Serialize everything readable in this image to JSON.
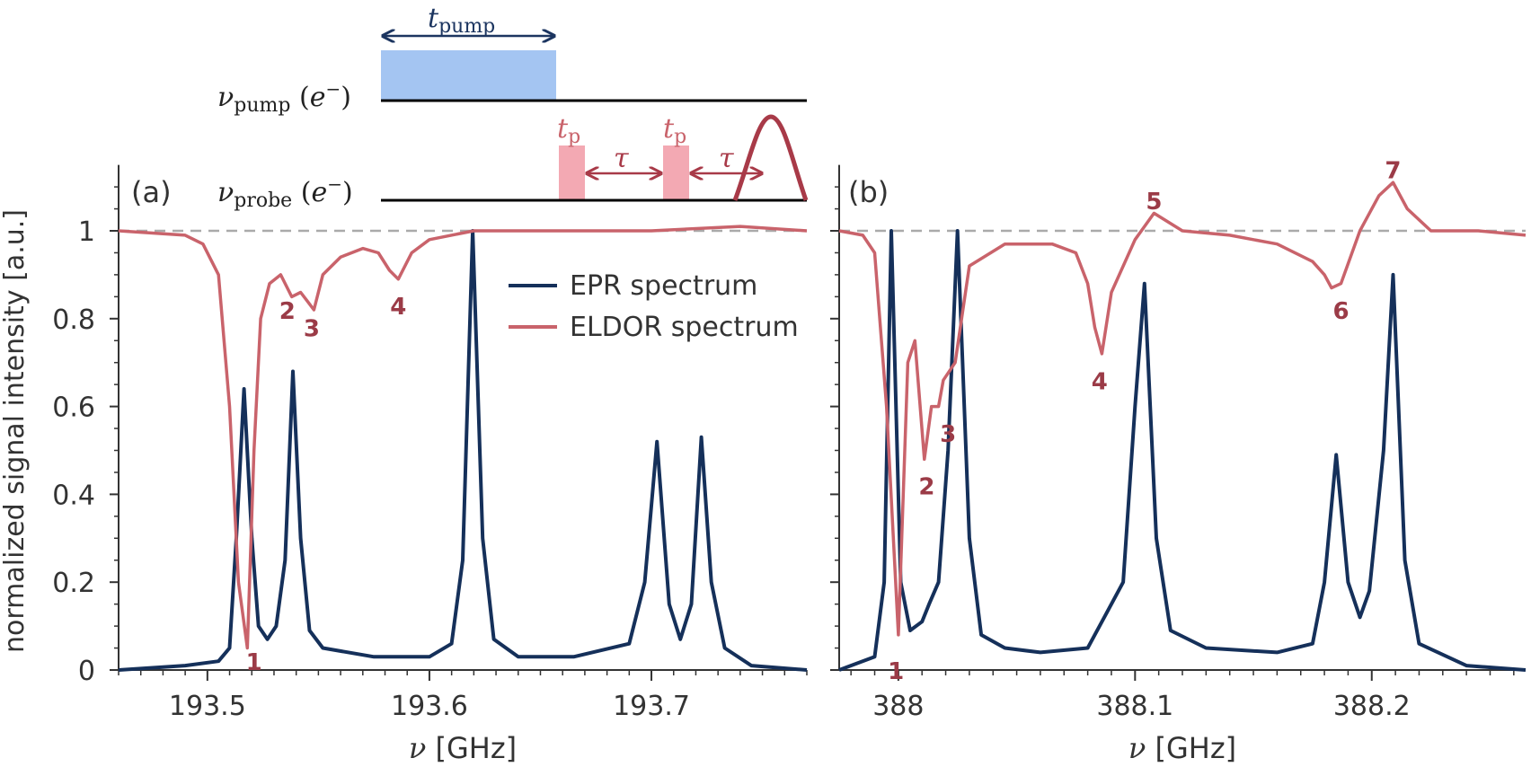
{
  "colors": {
    "epr": "#15305a",
    "eldor": "#c9636b",
    "label": "#9b3b47",
    "pump_pulse": "#a4c5f2",
    "probe_pulse": "#f3a9b3",
    "probe_arrow": "#a83a48",
    "pump_arrow": "#1c3560",
    "axis": "#333333",
    "dashed": "#aaaaaa"
  },
  "ylabel": "normalized signal intensity [a.u.]",
  "legend": {
    "epr": "EPR spectrum",
    "eldor": "ELDOR spectrum"
  },
  "pulse_sequence": {
    "pump_label": "νpump (e⁻)",
    "probe_label": "νprobe (e⁻)",
    "t_pump": "tpump",
    "t_p1": "tp",
    "t_p2": "tp",
    "tau1": "τ",
    "tau2": "τ"
  },
  "chart_data": [
    {
      "panel": "(a)",
      "type": "line",
      "xlabel": "ν [GHz]",
      "ylabel": "normalized signal intensity [a.u.]",
      "xlim": [
        193.46,
        193.77
      ],
      "ylim": [
        0,
        1.15
      ],
      "xticks": [
        "193.5",
        "193.6",
        "193.7"
      ],
      "xtick_values": [
        193.5,
        193.6,
        193.7
      ],
      "yticks": [
        "0",
        "0.2",
        "0.4",
        "0.6",
        "0.8",
        "1"
      ],
      "ytick_values": [
        0,
        0.2,
        0.4,
        0.6,
        0.8,
        1.0
      ],
      "reference_line": 1.0,
      "series": [
        {
          "name": "EPR spectrum",
          "x": [
            193.46,
            193.49,
            193.505,
            193.51,
            193.513,
            193.5165,
            193.52,
            193.523,
            193.527,
            193.531,
            193.535,
            193.5385,
            193.542,
            193.546,
            193.552,
            193.575,
            193.6,
            193.61,
            193.615,
            193.6195,
            193.624,
            193.629,
            193.64,
            193.665,
            193.69,
            193.697,
            193.7025,
            193.708,
            193.713,
            193.718,
            193.7225,
            193.727,
            193.733,
            193.745,
            193.77
          ],
          "values": [
            0.0,
            0.01,
            0.02,
            0.05,
            0.3,
            0.64,
            0.3,
            0.1,
            0.07,
            0.1,
            0.25,
            0.68,
            0.3,
            0.09,
            0.05,
            0.03,
            0.03,
            0.06,
            0.25,
            1.0,
            0.3,
            0.07,
            0.03,
            0.03,
            0.06,
            0.2,
            0.52,
            0.15,
            0.07,
            0.15,
            0.53,
            0.2,
            0.05,
            0.01,
            0.0
          ]
        },
        {
          "name": "ELDOR spectrum",
          "x": [
            193.46,
            193.49,
            193.498,
            193.505,
            193.51,
            193.514,
            193.518,
            193.521,
            193.524,
            193.528,
            193.533,
            193.538,
            193.542,
            193.545,
            193.548,
            193.552,
            193.56,
            193.57,
            193.577,
            193.582,
            193.586,
            193.592,
            193.6,
            193.62,
            193.65,
            193.7,
            193.74,
            193.77
          ],
          "values": [
            1.0,
            0.99,
            0.97,
            0.9,
            0.6,
            0.2,
            0.05,
            0.5,
            0.8,
            0.88,
            0.9,
            0.85,
            0.86,
            0.84,
            0.82,
            0.9,
            0.94,
            0.96,
            0.95,
            0.91,
            0.89,
            0.95,
            0.98,
            1.0,
            1.0,
            1.0,
            1.01,
            1.0
          ]
        }
      ],
      "annotations": [
        {
          "text": "1",
          "x": 193.521,
          "y": 0.02
        },
        {
          "text": "2",
          "x": 193.536,
          "y": 0.82
        },
        {
          "text": "3",
          "x": 193.547,
          "y": 0.78
        },
        {
          "text": "4",
          "x": 193.586,
          "y": 0.83
        }
      ]
    },
    {
      "panel": "(b)",
      "type": "line",
      "xlabel": "ν [GHz]",
      "xlim": [
        387.975,
        388.265
      ],
      "ylim": [
        0,
        1.15
      ],
      "xticks": [
        "388",
        "388.1",
        "388.2"
      ],
      "xtick_values": [
        388.0,
        388.1,
        388.2
      ],
      "reference_line": 1.0,
      "series": [
        {
          "name": "EPR spectrum",
          "x": [
            387.975,
            387.99,
            387.994,
            387.997,
            388.001,
            388.005,
            388.01,
            388.013,
            388.017,
            388.021,
            388.025,
            388.03,
            388.035,
            388.045,
            388.06,
            388.08,
            388.085,
            388.088,
            388.095,
            388.1,
            388.104,
            388.109,
            388.115,
            388.13,
            388.16,
            388.175,
            388.18,
            388.185,
            388.19,
            388.195,
            388.199,
            388.205,
            388.209,
            388.214,
            388.22,
            388.24,
            388.265
          ],
          "values": [
            0.0,
            0.03,
            0.2,
            1.0,
            0.2,
            0.09,
            0.11,
            0.15,
            0.2,
            0.5,
            1.0,
            0.3,
            0.08,
            0.05,
            0.04,
            0.05,
            0.1,
            0.13,
            0.2,
            0.6,
            0.88,
            0.3,
            0.09,
            0.05,
            0.04,
            0.06,
            0.2,
            0.49,
            0.2,
            0.12,
            0.18,
            0.5,
            0.9,
            0.25,
            0.06,
            0.01,
            0.0
          ]
        },
        {
          "name": "ELDOR spectrum",
          "x": [
            387.975,
            387.985,
            387.99,
            387.995,
            388.0,
            388.004,
            388.007,
            388.011,
            388.014,
            388.017,
            388.019,
            388.024,
            388.03,
            388.045,
            388.065,
            388.075,
            388.08,
            388.083,
            388.086,
            388.09,
            388.1,
            388.108,
            388.12,
            388.14,
            388.16,
            388.175,
            388.18,
            388.183,
            388.187,
            388.195,
            388.203,
            388.209,
            388.215,
            388.225,
            388.245,
            388.265
          ],
          "values": [
            1.0,
            0.99,
            0.95,
            0.6,
            0.08,
            0.7,
            0.75,
            0.48,
            0.6,
            0.6,
            0.66,
            0.7,
            0.92,
            0.97,
            0.97,
            0.95,
            0.88,
            0.78,
            0.72,
            0.86,
            0.98,
            1.04,
            1.0,
            0.99,
            0.97,
            0.93,
            0.9,
            0.87,
            0.88,
            1.0,
            1.08,
            1.11,
            1.05,
            1.0,
            1.0,
            0.99
          ]
        }
      ],
      "annotations": [
        {
          "text": "1",
          "x": 387.999,
          "y": 0.0
        },
        {
          "text": "2",
          "x": 388.012,
          "y": 0.42
        },
        {
          "text": "3",
          "x": 388.021,
          "y": 0.54
        },
        {
          "text": "4",
          "x": 388.085,
          "y": 0.66
        },
        {
          "text": "5",
          "x": 388.108,
          "y": 1.07
        },
        {
          "text": "6",
          "x": 388.187,
          "y": 0.82
        },
        {
          "text": "7",
          "x": 388.209,
          "y": 1.14
        }
      ]
    }
  ]
}
